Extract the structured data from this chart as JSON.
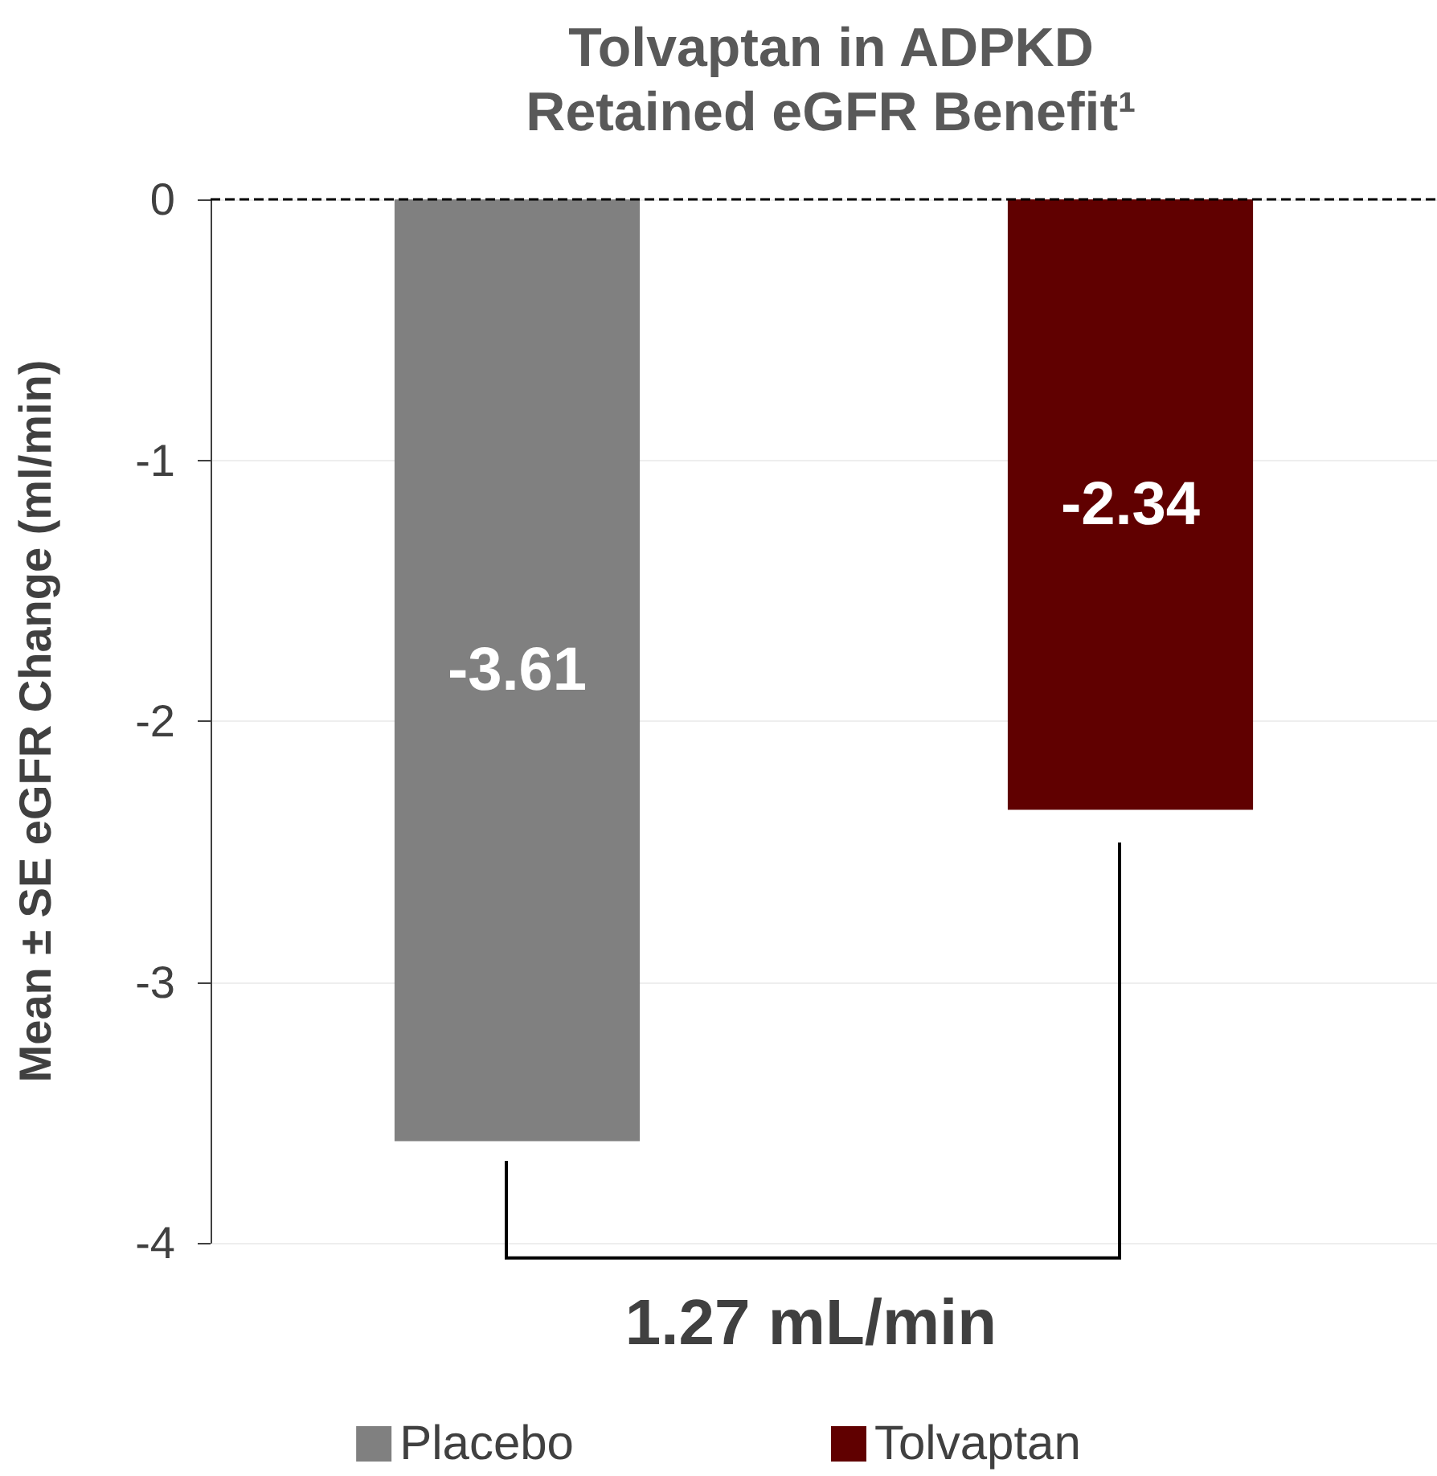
{
  "chart_data": {
    "type": "bar",
    "title": "Tolvaptan in ADPKD",
    "subtitle": "Retained eGFR Benefit¹",
    "ylabel": "Mean ± SE eGFR Change (ml/min)",
    "categories": [
      null,
      null
    ],
    "series": [
      {
        "name": "Placebo",
        "color": "#808080",
        "values": [
          -3.61,
          null
        ]
      },
      {
        "name": "Tolvaptan",
        "color": "#600000",
        "values": [
          null,
          -2.34
        ]
      }
    ],
    "ylim": [
      -4,
      0
    ],
    "yticks": [
      0,
      -1,
      -2,
      -3,
      -4
    ],
    "grid": "y",
    "legend": "bottom",
    "data_labels": true,
    "ref_lines": [
      {
        "axis": "y",
        "value": 0,
        "color": "#000000",
        "line_style": "dashed"
      }
    ],
    "annotations": [
      "1.27 mL/min"
    ]
  }
}
